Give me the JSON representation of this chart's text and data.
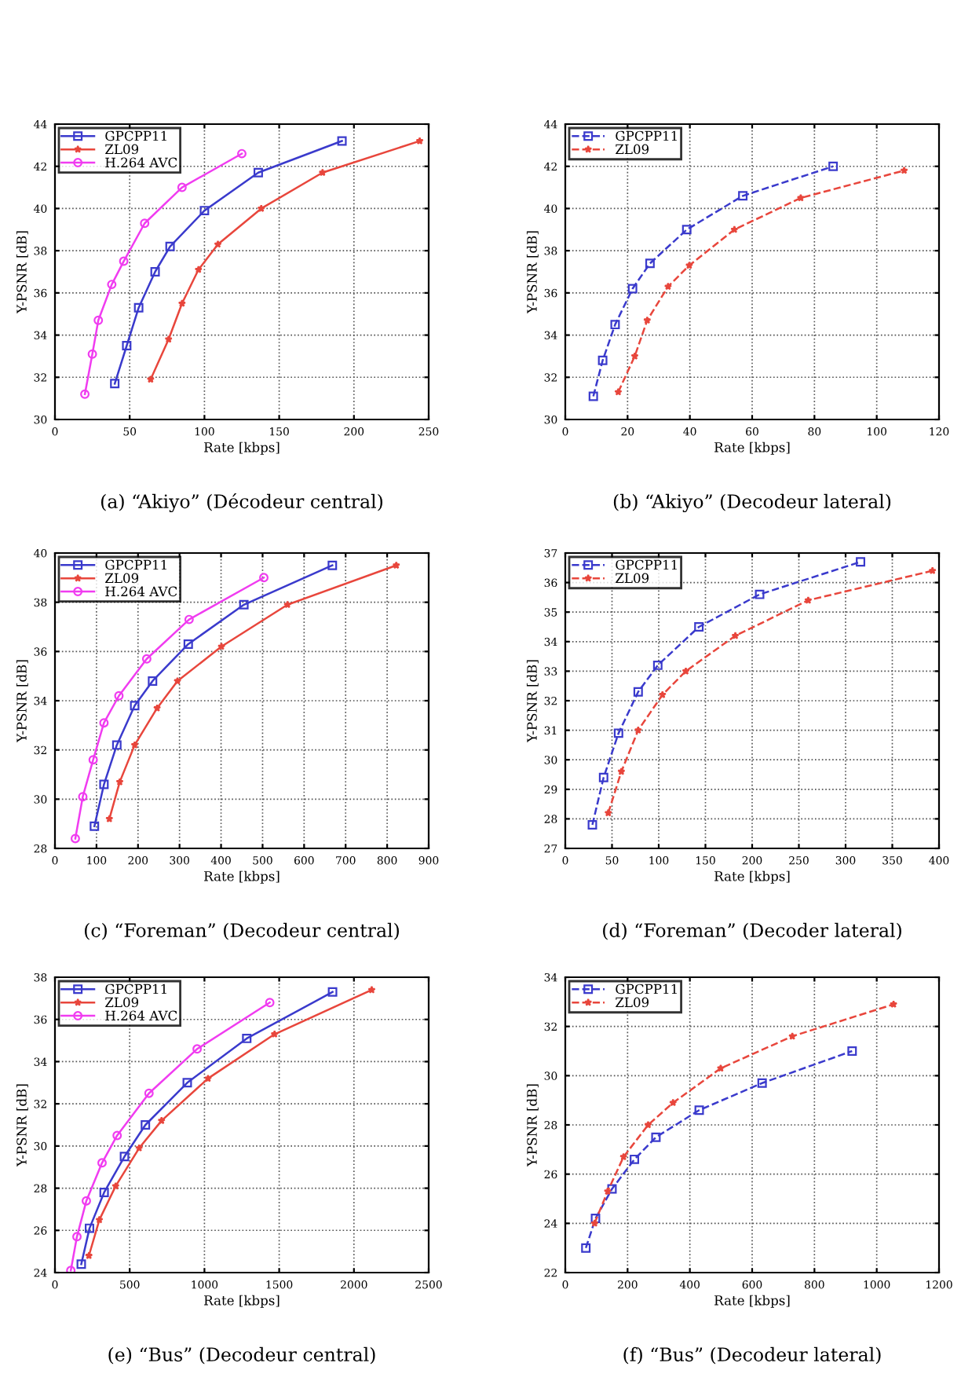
{
  "chart_data": [
    {
      "type": "line",
      "title": "(a) “Akiyo” (Décodeur central)",
      "xlabel": "Rate [kbps]",
      "ylabel": "Y-PSNR [dB]",
      "xlim": [
        0,
        250
      ],
      "xticks": [
        0,
        50,
        100,
        150,
        200,
        250
      ],
      "ylim": [
        30,
        44
      ],
      "yticks": [
        30,
        32,
        34,
        36,
        38,
        40,
        42,
        44
      ],
      "grid": true,
      "legend": "top left",
      "line_style": "solid",
      "series": [
        {
          "name": "GPCPP11",
          "color": "#3a3acc",
          "marker": "square",
          "x": [
            40,
            48,
            56,
            67,
            77,
            100,
            136,
            192
          ],
          "values": [
            31.7,
            33.5,
            35.3,
            37.0,
            38.2,
            39.9,
            41.7,
            43.2
          ]
        },
        {
          "name": "ZL09",
          "color": "#e8463c",
          "marker": "star",
          "x": [
            64,
            76,
            85,
            96,
            109,
            138,
            179,
            244
          ],
          "values": [
            31.9,
            33.8,
            35.5,
            37.1,
            38.3,
            40.0,
            41.7,
            43.2
          ]
        },
        {
          "name": "H.264 AVC",
          "color": "#f03cf0",
          "marker": "circle",
          "x": [
            20,
            25,
            29,
            38,
            46,
            60,
            85,
            125
          ],
          "values": [
            31.2,
            33.1,
            34.7,
            36.4,
            37.5,
            39.3,
            41.0,
            42.6
          ]
        }
      ]
    },
    {
      "type": "line",
      "title": "(b) “Akiyo” (Decodeur lateral)",
      "xlabel": "Rate [kbps]",
      "ylabel": "Y-PSNR [dB]",
      "xlim": [
        0,
        120
      ],
      "xticks": [
        0,
        20,
        40,
        60,
        80,
        100,
        120
      ],
      "ylim": [
        30,
        44
      ],
      "yticks": [
        30,
        32,
        34,
        36,
        38,
        40,
        42,
        44
      ],
      "grid": true,
      "legend": "top left",
      "line_style": "dashed",
      "series": [
        {
          "name": "GPCPP11",
          "color": "#3a3acc",
          "marker": "square",
          "x": [
            9,
            12,
            16,
            21.6,
            27.2,
            39,
            57,
            86
          ],
          "values": [
            31.1,
            32.8,
            34.5,
            36.2,
            37.4,
            39.0,
            40.6,
            42.0
          ]
        },
        {
          "name": "ZL09",
          "color": "#e8463c",
          "marker": "star",
          "x": [
            17,
            22.3,
            26.3,
            33,
            39.8,
            54.3,
            75.6,
            108.8
          ],
          "values": [
            31.3,
            33.0,
            34.7,
            36.3,
            37.3,
            39.0,
            40.5,
            41.8
          ]
        }
      ]
    },
    {
      "type": "line",
      "title": "(c) “Foreman” (Decodeur central)",
      "xlabel": "Rate [kbps]",
      "ylabel": "Y-PSNR [dB]",
      "xlim": [
        0,
        900
      ],
      "xticks": [
        0,
        100,
        200,
        300,
        400,
        500,
        600,
        700,
        800,
        900
      ],
      "ylim": [
        28,
        40
      ],
      "yticks": [
        28,
        30,
        32,
        34,
        36,
        38,
        40
      ],
      "grid": true,
      "legend": "top left",
      "line_style": "solid",
      "series": [
        {
          "name": "GPCPP11",
          "color": "#3a3acc",
          "marker": "square",
          "x": [
            95,
            118,
            149,
            192,
            235,
            321,
            455,
            668
          ],
          "values": [
            28.9,
            30.6,
            32.2,
            33.8,
            34.8,
            36.3,
            37.9,
            39.5
          ]
        },
        {
          "name": "ZL09",
          "color": "#e8463c",
          "marker": "star",
          "x": [
            131,
            156,
            192,
            246,
            295,
            401,
            560,
            822
          ],
          "values": [
            29.2,
            30.7,
            32.2,
            33.7,
            34.8,
            36.2,
            37.9,
            39.5
          ]
        },
        {
          "name": "H.264 AVC",
          "color": "#f03cf0",
          "marker": "circle",
          "x": [
            49,
            67,
            92,
            118,
            154,
            221,
            323,
            503
          ],
          "values": [
            28.4,
            30.1,
            31.6,
            33.1,
            34.2,
            35.7,
            37.3,
            39.0
          ]
        }
      ]
    },
    {
      "type": "line",
      "title": "(d) “Foreman” (Decoder lateral)",
      "xlabel": "Rate [kbps]",
      "ylabel": "Y-PSNR [dB]",
      "xlim": [
        0,
        400
      ],
      "xticks": [
        0,
        50,
        100,
        150,
        200,
        250,
        300,
        350,
        400
      ],
      "ylim": [
        27,
        37
      ],
      "yticks": [
        27,
        28,
        29,
        30,
        31,
        32,
        33,
        34,
        35,
        36,
        37
      ],
      "grid": true,
      "legend": "top left",
      "line_style": "dashed",
      "series": [
        {
          "name": "GPCPP11",
          "color": "#3a3acc",
          "marker": "square",
          "x": [
            29,
            41,
            57,
            78,
            99,
            143,
            208,
            316
          ],
          "values": [
            27.8,
            29.4,
            30.9,
            32.3,
            33.2,
            34.5,
            35.6,
            36.7
          ]
        },
        {
          "name": "ZL09",
          "color": "#e8463c",
          "marker": "star",
          "x": [
            46,
            60,
            78,
            104,
            129,
            182,
            260,
            393
          ],
          "values": [
            28.2,
            29.6,
            31.0,
            32.2,
            33.0,
            34.2,
            35.4,
            36.4
          ]
        }
      ]
    },
    {
      "type": "line",
      "title": "(e) “Bus” (Decodeur central)",
      "xlabel": "Rate [kbps]",
      "ylabel": "Y-PSNR [dB]",
      "xlim": [
        0,
        2500
      ],
      "xticks": [
        0,
        500,
        1000,
        1500,
        2000,
        2500
      ],
      "ylim": [
        24,
        38
      ],
      "yticks": [
        24,
        26,
        28,
        30,
        32,
        34,
        36,
        38
      ],
      "grid": true,
      "legend": "top left",
      "line_style": "solid",
      "series": [
        {
          "name": "GPCPP11",
          "color": "#3a3acc",
          "marker": "square",
          "x": [
            176,
            231,
            329,
            465,
            605,
            885,
            1283,
            1857
          ],
          "values": [
            24.4,
            26.1,
            27.8,
            29.5,
            31.0,
            33.0,
            35.1,
            37.3
          ]
        },
        {
          "name": "ZL09",
          "color": "#e8463c",
          "marker": "star",
          "x": [
            227,
            297,
            406,
            563,
            713,
            1024,
            1469,
            2119
          ],
          "values": [
            24.8,
            26.5,
            28.1,
            29.9,
            31.2,
            33.2,
            35.3,
            37.4
          ]
        },
        {
          "name": "H.264 AVC",
          "color": "#f03cf0",
          "marker": "circle",
          "x": [
            106,
            147,
            210,
            315,
            416,
            629,
            951,
            1437
          ],
          "values": [
            24.1,
            25.7,
            27.4,
            29.2,
            30.5,
            32.5,
            34.6,
            36.8
          ]
        }
      ]
    },
    {
      "type": "line",
      "title": "(f) “Bus” (Decodeur lateral)",
      "xlabel": "Rate [kbps]",
      "ylabel": "Y-PSNR [dB]",
      "xlim": [
        0,
        1200
      ],
      "xticks": [
        0,
        200,
        400,
        600,
        800,
        1000,
        1200
      ],
      "ylim": [
        22,
        34
      ],
      "yticks": [
        22,
        24,
        26,
        28,
        30,
        32,
        34
      ],
      "grid": true,
      "legend": "top left",
      "line_style": "dashed",
      "series": [
        {
          "name": "GPCPP11",
          "color": "#3a3acc",
          "marker": "square",
          "x": [
            66,
            97,
            150,
            222,
            291,
            430,
            632,
            921
          ],
          "values": [
            23.0,
            24.2,
            25.4,
            26.6,
            27.5,
            28.6,
            29.7,
            31.0
          ]
        },
        {
          "name": "ZL09",
          "color": "#e8463c",
          "marker": "star",
          "x": [
            94,
            136,
            187,
            266,
            346,
            499,
            729,
            1054
          ],
          "values": [
            24.0,
            25.3,
            26.7,
            28.0,
            28.9,
            30.3,
            31.6,
            32.9
          ]
        }
      ]
    }
  ]
}
